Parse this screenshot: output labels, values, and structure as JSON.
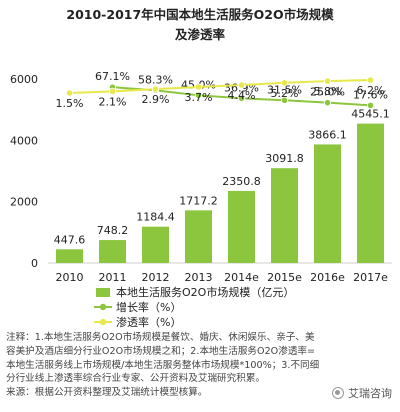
{
  "chart_data": {
    "type": "bar",
    "title_line1": "2010-2017年中国本地生活服务O2O市场规模",
    "title_line2": "及渗透率",
    "categories": [
      "2010",
      "2011",
      "2012",
      "2013",
      "2014e",
      "2015e",
      "2016e",
      "2017e"
    ],
    "ylim": [
      0,
      6000
    ],
    "yticks": [
      0,
      2000,
      4000,
      6000
    ],
    "grid": false,
    "series": [
      {
        "name": "本地生活服务O2O市场规模（亿元）",
        "kind": "bar",
        "color": "#8cc63f",
        "values": [
          447.6,
          748.2,
          1184.4,
          1717.2,
          2350.8,
          3091.8,
          3866.1,
          4545.1
        ],
        "labels": [
          "447.6",
          "748.2",
          "1184.4",
          "1717.2",
          "2350.8",
          "3091.8",
          "3866.1",
          "4545.1"
        ]
      },
      {
        "name": "增长率（%）",
        "kind": "line",
        "color": "#8cc63f",
        "values": [
          null,
          67.1,
          58.3,
          45.0,
          36.9,
          31.5,
          25.0,
          17.6
        ],
        "labels": [
          "",
          "67.1%",
          "58.3%",
          "45.0%",
          "36.9%",
          "31.5%",
          "25.0%",
          "17.6%"
        ]
      },
      {
        "name": "渗透率（%）",
        "kind": "line",
        "color": "#e8e84a",
        "values": [
          1.5,
          2.1,
          2.9,
          3.7,
          4.4,
          5.2,
          5.8,
          6.2
        ],
        "labels": [
          "1.5%",
          "2.1%",
          "2.9%",
          "3.7%",
          "4.4%",
          "5.2%",
          "5.8%",
          "6.2%"
        ]
      }
    ],
    "legend_position": "bottom"
  },
  "notes": {
    "line1": "注释：1.本地生活服务O2O市场规模是餐饮、婚庆、休闲娱乐、亲子、美",
    "line2": "容美护及酒店细分行业O2O市场规模之和；2.本地生活服务O2O渗透率=",
    "line3": "本地生活服务线上市场规模/本地生活服务整体市场规模*100%；3.不同细",
    "line4": "分行业线上渗透率综合行业专家、公开资料及艾瑞研究积累。",
    "line5": "来源：根据公开资料整理及艾瑞统计模型核算。"
  },
  "brand": {
    "text": "艾瑞咨询"
  }
}
